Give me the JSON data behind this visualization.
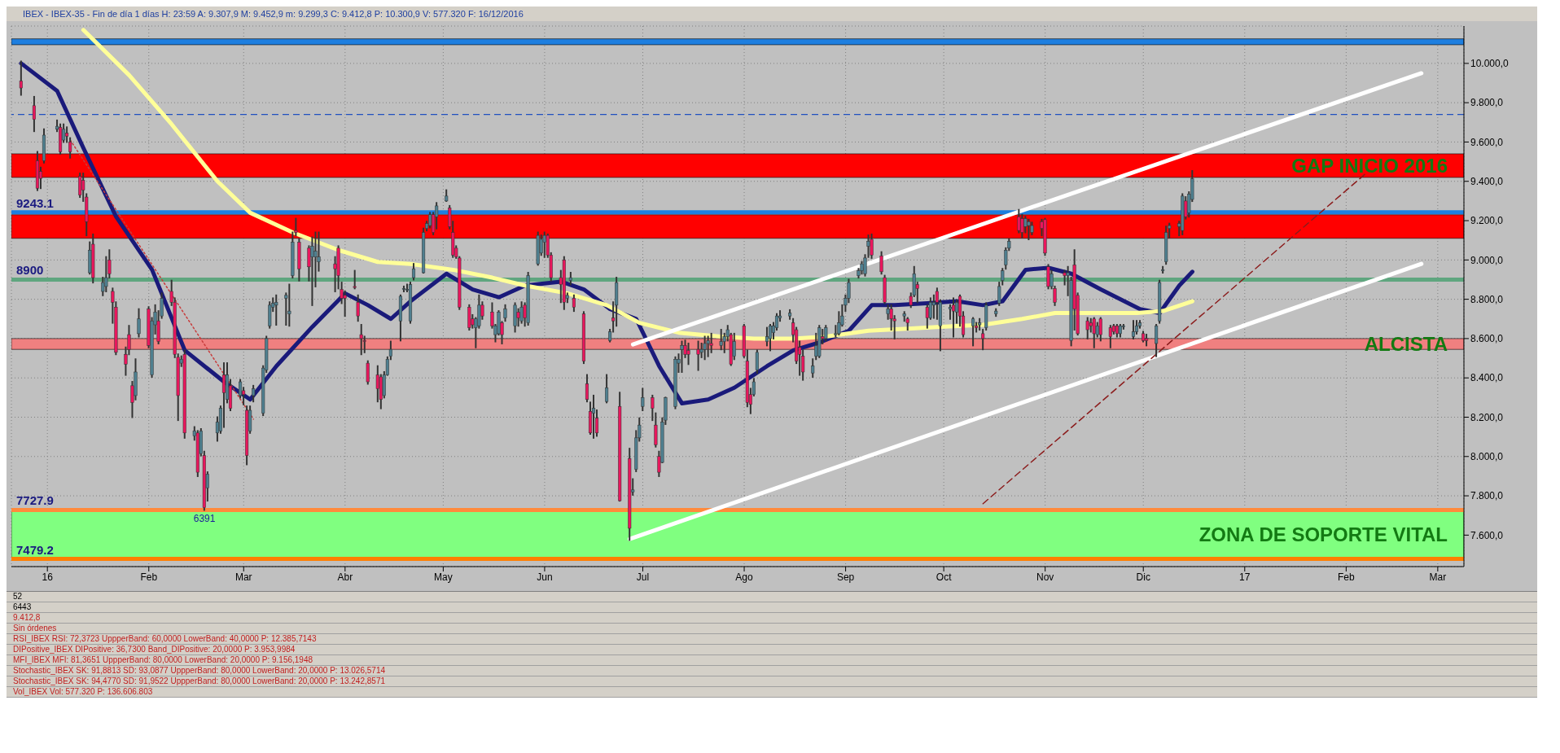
{
  "chart_data": {
    "type": "candlestick",
    "title": "IBEX - IBEX-35 - Fin de día 1 días  H: 23:59  A: 9.307,9  M: 9.452,9  m: 9.299,3  C: 9.412,8  P: 10.300,9  V: 577.320  F: 16/12/2016",
    "x": [
      "2015-12-24",
      "2015-12-28",
      "2015-12-29",
      "2015-12-30",
      "2015-12-31",
      "2016-01-04",
      "2016-01-05",
      "2016-01-06",
      "2016-01-07",
      "2016-01-08",
      "2016-01-11",
      "2016-01-12",
      "2016-01-13",
      "2016-01-14",
      "2016-01-15",
      "2016-01-18",
      "2016-01-19",
      "2016-01-20",
      "2016-01-21",
      "2016-01-22",
      "2016-01-25",
      "2016-01-26",
      "2016-01-27",
      "2016-01-28",
      "2016-01-29",
      "2016-02-01",
      "2016-02-02",
      "2016-02-03",
      "2016-02-04",
      "2016-02-05",
      "2016-02-08",
      "2016-02-09",
      "2016-02-10",
      "2016-02-11",
      "2016-02-12",
      "2016-02-15",
      "2016-02-16",
      "2016-02-17",
      "2016-02-18",
      "2016-02-19",
      "2016-02-22",
      "2016-02-23",
      "2016-02-24",
      "2016-02-25",
      "2016-02-26",
      "2016-02-29",
      "2016-03-01",
      "2016-03-02",
      "2016-03-03",
      "2016-03-04",
      "2016-03-07",
      "2016-03-08",
      "2016-03-09",
      "2016-03-10",
      "2016-03-11",
      "2016-03-14",
      "2016-03-15",
      "2016-03-16",
      "2016-03-17",
      "2016-03-18",
      "2016-03-21",
      "2016-03-22",
      "2016-03-23",
      "2016-03-24",
      "2016-03-29",
      "2016-03-30",
      "2016-03-31",
      "2016-04-01",
      "2016-04-04",
      "2016-04-05",
      "2016-04-06",
      "2016-04-07",
      "2016-04-08",
      "2016-04-11",
      "2016-04-12",
      "2016-04-13",
      "2016-04-14",
      "2016-04-15",
      "2016-04-18",
      "2016-04-19",
      "2016-04-20",
      "2016-04-21",
      "2016-04-22",
      "2016-04-25",
      "2016-04-26",
      "2016-04-27",
      "2016-04-28",
      "2016-04-29",
      "2016-05-02",
      "2016-05-03",
      "2016-05-04",
      "2016-05-05",
      "2016-05-06",
      "2016-05-09",
      "2016-05-10",
      "2016-05-11",
      "2016-05-12",
      "2016-05-13",
      "2016-05-16",
      "2016-05-17",
      "2016-05-18",
      "2016-05-19",
      "2016-05-20",
      "2016-05-23",
      "2016-05-24",
      "2016-05-25",
      "2016-05-26",
      "2016-05-27",
      "2016-05-30",
      "2016-05-31",
      "2016-06-01",
      "2016-06-02",
      "2016-06-03",
      "2016-06-06",
      "2016-06-07",
      "2016-06-08",
      "2016-06-09",
      "2016-06-10",
      "2016-06-13",
      "2016-06-14",
      "2016-06-15",
      "2016-06-16",
      "2016-06-17",
      "2016-06-20",
      "2016-06-21",
      "2016-06-22",
      "2016-06-23",
      "2016-06-24",
      "2016-06-27",
      "2016-06-28",
      "2016-06-29",
      "2016-06-30",
      "2016-07-01",
      "2016-07-04",
      "2016-07-05",
      "2016-07-06",
      "2016-07-07",
      "2016-07-08",
      "2016-07-11",
      "2016-07-12",
      "2016-07-13",
      "2016-07-14",
      "2016-07-15",
      "2016-07-18",
      "2016-07-19",
      "2016-07-20",
      "2016-07-21",
      "2016-07-22",
      "2016-07-25",
      "2016-07-26",
      "2016-07-27",
      "2016-07-28",
      "2016-07-29",
      "2016-08-01",
      "2016-08-02",
      "2016-08-03",
      "2016-08-04",
      "2016-08-05",
      "2016-08-08",
      "2016-08-09",
      "2016-08-10",
      "2016-08-11",
      "2016-08-12",
      "2016-08-15",
      "2016-08-16",
      "2016-08-17",
      "2016-08-18",
      "2016-08-19",
      "2016-08-22",
      "2016-08-23",
      "2016-08-24",
      "2016-08-25",
      "2016-08-26",
      "2016-08-29",
      "2016-08-30",
      "2016-08-31",
      "2016-09-01",
      "2016-09-02",
      "2016-09-05",
      "2016-09-06",
      "2016-09-07",
      "2016-09-08",
      "2016-09-09",
      "2016-09-12",
      "2016-09-13",
      "2016-09-14",
      "2016-09-15",
      "2016-09-16",
      "2016-09-19",
      "2016-09-20",
      "2016-09-21",
      "2016-09-22",
      "2016-09-23",
      "2016-09-26",
      "2016-09-27",
      "2016-09-28",
      "2016-09-29",
      "2016-09-30",
      "2016-10-03",
      "2016-10-04",
      "2016-10-05",
      "2016-10-06",
      "2016-10-07",
      "2016-10-10",
      "2016-10-11",
      "2016-10-12",
      "2016-10-13",
      "2016-10-14",
      "2016-10-17",
      "2016-10-18",
      "2016-10-19",
      "2016-10-20",
      "2016-10-21",
      "2016-10-24",
      "2016-10-25",
      "2016-10-26",
      "2016-10-27",
      "2016-10-28",
      "2016-10-31",
      "2016-11-01",
      "2016-11-02",
      "2016-11-03",
      "2016-11-04",
      "2016-11-07",
      "2016-11-08",
      "2016-11-09",
      "2016-11-10",
      "2016-11-11",
      "2016-11-14",
      "2016-11-15",
      "2016-11-16",
      "2016-11-17",
      "2016-11-18",
      "2016-11-21",
      "2016-11-22",
      "2016-11-23",
      "2016-11-24",
      "2016-11-25",
      "2016-11-28",
      "2016-11-29",
      "2016-11-30",
      "2016-12-01",
      "2016-12-02",
      "2016-12-05",
      "2016-12-06",
      "2016-12-07",
      "2016-12-08",
      "2016-12-09",
      "2016-12-12",
      "2016-12-13",
      "2016-12-14",
      "2016-12-15",
      "2016-12-16"
    ],
    "ohlc": [
      [
        9910,
        10010,
        9840,
        9875
      ],
      [
        9785,
        9830,
        9655,
        9715
      ],
      [
        9505,
        9550,
        9355,
        9365
      ],
      [
        9450,
        9470,
        9365,
        9415
      ],
      [
        9505,
        9665,
        9495,
        9635
      ],
      [
        9665,
        9710,
        9655,
        9680
      ],
      [
        9675,
        9690,
        9540,
        9550
      ],
      [
        9610,
        9690,
        9600,
        9665
      ],
      [
        9645,
        9675,
        9600,
        9630
      ],
      [
        9600,
        9620,
        9520,
        9550
      ],
      [
        9425,
        9440,
        9320,
        9330
      ],
      [
        9405,
        9440,
        9300,
        9355
      ],
      [
        9320,
        9335,
        9125,
        9195
      ],
      [
        8935,
        9090,
        8930,
        9050
      ],
      [
        9080,
        9130,
        8885,
        8910
      ],
      [
        8840,
        8910,
        8820,
        8885
      ],
      [
        8865,
        9015,
        8840,
        8910
      ],
      [
        9000,
        9050,
        8910,
        8930
      ],
      [
        8840,
        8855,
        8680,
        8785
      ],
      [
        8760,
        8785,
        8520,
        8530
      ],
      [
        8520,
        8555,
        8415,
        8470
      ],
      [
        8620,
        8665,
        8520,
        8545
      ],
      [
        8360,
        8380,
        8200,
        8275
      ],
      [
        8310,
        8495,
        8290,
        8430
      ],
      [
        8625,
        8750,
        8610,
        8700
      ],
      [
        8750,
        8760,
        8555,
        8565
      ],
      [
        8415,
        8705,
        8405,
        8690
      ],
      [
        8670,
        8770,
        8625,
        8735
      ],
      [
        8690,
        8740,
        8575,
        8585
      ],
      [
        8715,
        8830,
        8705,
        8805
      ],
      [
        8840,
        8895,
        8770,
        8785
      ],
      [
        8785,
        8805,
        8505,
        8520
      ],
      [
        8505,
        8520,
        8185,
        8310
      ],
      [
        8475,
        8510,
        8460,
        8495
      ],
      [
        8520,
        8540,
        8095,
        8120
      ],
      [
        8105,
        8150,
        8085,
        8130
      ],
      [
        8120,
        8130,
        7900,
        7920
      ],
      [
        8015,
        8140,
        8005,
        8130
      ],
      [
        8005,
        8025,
        7727.9,
        7740
      ],
      [
        7840,
        7920,
        7775,
        7910
      ],
      [
        8120,
        8200,
        8080,
        8175
      ],
      [
        8130,
        8255,
        8120,
        8245
      ],
      [
        8415,
        8475,
        8150,
        8325
      ],
      [
        8290,
        8475,
        8275,
        8415
      ],
      [
        8360,
        8390,
        8235,
        8245
      ],
      [
        8310,
        8390,
        8300,
        8380
      ],
      [
        8335,
        8350,
        8265,
        8315
      ],
      [
        8235,
        8255,
        7960,
        8005
      ],
      [
        8130,
        8255,
        8120,
        8235
      ],
      [
        8310,
        8360,
        8280,
        8345
      ],
      [
        8220,
        8460,
        8210,
        8450
      ],
      [
        8440,
        8610,
        8430,
        8600
      ],
      [
        8665,
        8785,
        8655,
        8770
      ],
      [
        8760,
        8805,
        8740,
        8780
      ],
      [
        8770,
        8820,
        8670,
        8785
      ],
      [
        8805,
        8830,
        8670,
        8820
      ],
      [
        8725,
        8875,
        8665,
        8740
      ],
      [
        8920,
        9140,
        8910,
        9090
      ],
      [
        9150,
        9210,
        9125,
        9140
      ],
      [
        9090,
        9105,
        8895,
        8955
      ],
      [
        9060,
        9070,
        8895,
        8965
      ],
      [
        9015,
        9115,
        8770,
        9070
      ],
      [
        9015,
        9140,
        8865,
        9045
      ],
      [
        8990,
        9140,
        8945,
        9015
      ],
      [
        8980,
        9015,
        8840,
        8955
      ],
      [
        9060,
        9070,
        8855,
        8920
      ],
      [
        8850,
        8885,
        8780,
        8805
      ],
      [
        8820,
        8840,
        8715,
        8805
      ],
      [
        8865,
        8945,
        8855,
        8860
      ],
      [
        8785,
        8820,
        8690,
        8715
      ],
      [
        8620,
        8670,
        8520,
        8600
      ],
      [
        8590,
        8610,
        8530,
        8585
      ],
      [
        8475,
        8485,
        8370,
        8380
      ],
      [
        8415,
        8460,
        8280,
        8345
      ],
      [
        8405,
        8415,
        8245,
        8290
      ],
      [
        8310,
        8430,
        8300,
        8415
      ],
      [
        8415,
        8505,
        8415,
        8495
      ],
      [
        8510,
        8585,
        8495,
        8545
      ],
      [
        8690,
        8820,
        8590,
        8815
      ],
      [
        8850,
        8865,
        8840,
        8855
      ],
      [
        8850,
        8875,
        8840,
        8850
      ],
      [
        8690,
        8885,
        8680,
        8875
      ],
      [
        8910,
        8980,
        8900,
        8955
      ],
      [
        8935,
        9160,
        8935,
        9140
      ],
      [
        9160,
        9195,
        9150,
        9185
      ],
      [
        9175,
        9240,
        9165,
        9230
      ],
      [
        9230,
        9240,
        9130,
        9140
      ],
      [
        9220,
        9290,
        9160,
        9275
      ],
      [
        9300,
        9355,
        9300,
        9325
      ],
      [
        9265,
        9275,
        9160,
        9170
      ],
      [
        9140,
        9195,
        9015,
        9025
      ],
      [
        9060,
        9070,
        9010,
        9015
      ],
      [
        9010,
        9015,
        8750,
        8760
      ],
      [
        8760,
        8770,
        8645,
        8655
      ],
      [
        8700,
        8720,
        8655,
        8670
      ],
      [
        8655,
        8705,
        8555,
        8700
      ],
      [
        8665,
        8820,
        8655,
        8770
      ],
      [
        8770,
        8785,
        8700,
        8715
      ],
      [
        8735,
        8780,
        8655,
        8665
      ],
      [
        8620,
        8670,
        8585,
        8665
      ],
      [
        8625,
        8740,
        8620,
        8735
      ],
      [
        8680,
        8685,
        8575,
        8620
      ],
      [
        8705,
        8770,
        8690,
        8750
      ],
      [
        8665,
        8780,
        8635,
        8770
      ],
      [
        8735,
        8750,
        8665,
        8705
      ],
      [
        8690,
        8785,
        8680,
        8760
      ],
      [
        8770,
        8780,
        8665,
        8705
      ],
      [
        8680,
        8935,
        8670,
        8920
      ],
      [
        8980,
        9140,
        8975,
        9125
      ],
      [
        9035,
        9125,
        9025,
        9105
      ],
      [
        9090,
        9140,
        9015,
        9125
      ],
      [
        9125,
        9130,
        9015,
        9025
      ],
      [
        9025,
        9035,
        8895,
        8910
      ],
      [
        8910,
        8945,
        8785,
        8875
      ],
      [
        9000,
        9015,
        8750,
        8785
      ],
      [
        8805,
        8830,
        8785,
        8820
      ],
      [
        8895,
        8935,
        8875,
        8910
      ],
      [
        8805,
        8820,
        8740,
        8760
      ],
      [
        8725,
        8735,
        8475,
        8485
      ],
      [
        8370,
        8415,
        8280,
        8290
      ],
      [
        8230,
        8275,
        8115,
        8120
      ],
      [
        8220,
        8310,
        8095,
        8245
      ],
      [
        8195,
        8235,
        8105,
        8120
      ],
      [
        8280,
        8415,
        8275,
        8350
      ],
      [
        8590,
        8645,
        8585,
        8635
      ],
      [
        8705,
        8785,
        8635,
        8690
      ],
      [
        8770,
        8910,
        8665,
        8885
      ],
      [
        8255,
        8325,
        7775,
        7775
      ],
      [
        7990,
        8040,
        7575,
        7635
      ],
      [
        7820,
        7885,
        7805,
        7830
      ],
      [
        7935,
        8130,
        7925,
        8095
      ],
      [
        8095,
        8195,
        8080,
        8160
      ],
      [
        8255,
        8345,
        8235,
        8300
      ],
      [
        8300,
        8310,
        8185,
        8245
      ],
      [
        8160,
        8220,
        8050,
        8060
      ],
      [
        8000,
        8025,
        7900,
        7920
      ],
      [
        7970,
        8195,
        7970,
        8175
      ],
      [
        8185,
        8300,
        8165,
        8300
      ],
      [
        8255,
        8505,
        8245,
        8495
      ],
      [
        8475,
        8520,
        8430,
        8495
      ],
      [
        8545,
        8585,
        8430,
        8565
      ],
      [
        8565,
        8590,
        8505,
        8520
      ],
      [
        8540,
        8575,
        8470,
        8520
      ],
      [
        8545,
        8585,
        8440,
        8520
      ],
      [
        8530,
        8575,
        8505,
        8545
      ],
      [
        8545,
        8610,
        8495,
        8575
      ],
      [
        8575,
        8610,
        8510,
        8590
      ],
      [
        8575,
        8625,
        8530,
        8565
      ],
      [
        8565,
        8645,
        8545,
        8585
      ],
      [
        8585,
        8625,
        8530,
        8610
      ],
      [
        8610,
        8665,
        8590,
        8645
      ],
      [
        8620,
        8625,
        8465,
        8470
      ],
      [
        8510,
        8625,
        8495,
        8585
      ],
      [
        8665,
        8670,
        8505,
        8510
      ],
      [
        8485,
        8540,
        8255,
        8275
      ],
      [
        8315,
        8345,
        8220,
        8265
      ],
      [
        8315,
        8395,
        8310,
        8380
      ],
      [
        8440,
        8540,
        8425,
        8530
      ],
      [
        8585,
        8655,
        8565,
        8610
      ],
      [
        8600,
        8670,
        8540,
        8665
      ],
      [
        8630,
        8680,
        8600,
        8665
      ],
      [
        8655,
        8725,
        8645,
        8715
      ],
      [
        8705,
        8740,
        8690,
        8715
      ],
      [
        8715,
        8745,
        8700,
        8730
      ],
      [
        8680,
        8700,
        8585,
        8620
      ],
      [
        8645,
        8655,
        8475,
        8485
      ],
      [
        8555,
        8585,
        8415,
        8520
      ],
      [
        8510,
        8540,
        8390,
        8430
      ],
      [
        8425,
        8495,
        8405,
        8460
      ],
      [
        8510,
        8625,
        8495,
        8565
      ],
      [
        8510,
        8665,
        8505,
        8655
      ],
      [
        8610,
        8645,
        8575,
        8600
      ],
      [
        8600,
        8665,
        8590,
        8655
      ],
      [
        8620,
        8665,
        8610,
        8625
      ],
      [
        8625,
        8735,
        8620,
        8680
      ],
      [
        8670,
        8770,
        8665,
        8715
      ],
      [
        8770,
        8820,
        8740,
        8805
      ],
      [
        8805,
        8900,
        8785,
        8885
      ],
      [
        8920,
        8955,
        8910,
        8945
      ],
      [
        8945,
        8990,
        8930,
        8980
      ],
      [
        8930,
        9025,
        8920,
        9010
      ],
      [
        9070,
        9125,
        9015,
        9095
      ],
      [
        9105,
        9130,
        9010,
        9025
      ],
      [
        9020,
        9040,
        8930,
        8940
      ],
      [
        8910,
        8920,
        8780,
        8785
      ],
      [
        8725,
        8770,
        8700,
        8750
      ],
      [
        8750,
        8770,
        8645,
        8700
      ],
      [
        8700,
        8715,
        8600,
        8690
      ],
      [
        8715,
        8735,
        8690,
        8725
      ],
      [
        8700,
        8705,
        8645,
        8680
      ],
      [
        8815,
        8830,
        8760,
        8770
      ],
      [
        8820,
        8965,
        8815,
        8930
      ],
      [
        8875,
        8885,
        8785,
        8855
      ],
      [
        8760,
        8770,
        8655,
        8705
      ],
      [
        8705,
        8805,
        8700,
        8785
      ],
      [
        8770,
        8820,
        8705,
        8785
      ],
      [
        8840,
        8855,
        8700,
        8785
      ],
      [
        8665,
        8795,
        8540,
        8785
      ],
      [
        8750,
        8770,
        8700,
        8760
      ],
      [
        8770,
        8805,
        8610,
        8740
      ],
      [
        8735,
        8795,
        8680,
        8785
      ],
      [
        8815,
        8820,
        8665,
        8715
      ],
      [
        8715,
        8735,
        8610,
        8620
      ],
      [
        8665,
        8705,
        8565,
        8700
      ],
      [
        8665,
        8680,
        8635,
        8655
      ],
      [
        8670,
        8700,
        8645,
        8680
      ],
      [
        8625,
        8645,
        8545,
        8600
      ],
      [
        8655,
        8780,
        8645,
        8770
      ],
      [
        8725,
        8750,
        8715,
        8740
      ],
      [
        8780,
        8885,
        8770,
        8865
      ],
      [
        8895,
        8955,
        8875,
        8945
      ],
      [
        8975,
        9060,
        8955,
        9050
      ],
      [
        9060,
        9105,
        9050,
        9095
      ],
      [
        9220,
        9255,
        9140,
        9150
      ],
      [
        9210,
        9230,
        9115,
        9140
      ],
      [
        9170,
        9220,
        9140,
        9210
      ],
      [
        9175,
        9205,
        9105,
        9195
      ],
      [
        9140,
        9190,
        9130,
        9175
      ],
      [
        9195,
        9205,
        9125,
        9160
      ],
      [
        9205,
        9210,
        9025,
        9035
      ],
      [
        8965,
        8975,
        8855,
        8865
      ],
      [
        8865,
        8945,
        8855,
        8930
      ],
      [
        8855,
        8865,
        8770,
        8785
      ],
      [
        8935,
        8945,
        8875,
        8920
      ],
      [
        8920,
        8965,
        8820,
        8935
      ],
      [
        8590,
        8910,
        8565,
        8895
      ],
      [
        8975,
        9050,
        8645,
        8750
      ],
      [
        8820,
        8830,
        8620,
        8625
      ],
      [
        8690,
        8705,
        8600,
        8645
      ],
      [
        8680,
        8700,
        8635,
        8665
      ],
      [
        8700,
        8705,
        8555,
        8625
      ],
      [
        8620,
        8680,
        8610,
        8665
      ],
      [
        8700,
        8705,
        8590,
        8620
      ],
      [
        8655,
        8665,
        8555,
        8610
      ],
      [
        8665,
        8670,
        8625,
        8635
      ],
      [
        8665,
        8670,
        8610,
        8625
      ],
      [
        8625,
        8670,
        8610,
        8665
      ],
      [
        8660,
        8670,
        8650,
        8665
      ],
      [
        8610,
        8690,
        8600,
        8635
      ],
      [
        8635,
        8690,
        8625,
        8665
      ],
      [
        8665,
        8690,
        8655,
        8680
      ],
      [
        8625,
        8635,
        8585,
        8590
      ],
      [
        8600,
        8620,
        8565,
        8590
      ],
      [
        8575,
        8670,
        8510,
        8665
      ],
      [
        8690,
        8895,
        8680,
        8885
      ],
      [
        8945,
        8965,
        8935,
        8950
      ],
      [
        8990,
        9170,
        8980,
        9140
      ],
      [
        9160,
        9185,
        9115,
        9175
      ],
      [
        9170,
        9195,
        9125,
        9185
      ],
      [
        9150,
        9335,
        9130,
        9325
      ],
      [
        9300,
        9320,
        9210,
        9220
      ],
      [
        9240,
        9345,
        9220,
        9335
      ],
      [
        9307.9,
        9452.9,
        9299.3,
        9412.8
      ]
    ],
    "series": [
      {
        "type": "line",
        "color": "#1a1a7a",
        "x": [
          "2015-12-24",
          "2016-01-04",
          "2016-01-12",
          "2016-01-22",
          "2016-02-02",
          "2016-02-12",
          "2016-02-24",
          "2016-03-03",
          "2016-03-11",
          "2016-03-22",
          "2016-04-01",
          "2016-04-08",
          "2016-04-15",
          "2016-04-21",
          "2016-05-02",
          "2016-05-10",
          "2016-05-18",
          "2016-05-26",
          "2016-06-06",
          "2016-06-13",
          "2016-06-21",
          "2016-06-29",
          "2016-07-06",
          "2016-07-13",
          "2016-07-21",
          "2016-07-29",
          "2016-08-08",
          "2016-08-16",
          "2016-08-24",
          "2016-09-02",
          "2016-09-09",
          "2016-09-16",
          "2016-09-26",
          "2016-10-05",
          "2016-10-13",
          "2016-10-19",
          "2016-10-26",
          "2016-11-02",
          "2016-11-09",
          "2016-11-18",
          "2016-11-30",
          "2016-12-06",
          "2016-12-12",
          "2016-12-16"
        ],
        "values": [
          10000,
          9860,
          9570,
          9220,
          8950,
          8540,
          8380,
          8290,
          8460,
          8660,
          8830,
          8770,
          8700,
          8790,
          8930,
          8850,
          8810,
          8870,
          8890,
          8850,
          8750,
          8700,
          8460,
          8270,
          8290,
          8350,
          8460,
          8540,
          8580,
          8640,
          8770,
          8770,
          8780,
          8790,
          8770,
          8790,
          8950,
          8960,
          8930,
          8850,
          8750,
          8730,
          8870,
          8940
        ]
      },
      {
        "type": "line",
        "color": "#ffff99",
        "x": [
          "2016-01-12",
          "2016-01-26",
          "2016-02-08",
          "2016-02-22",
          "2016-03-03",
          "2016-03-16",
          "2016-03-30",
          "2016-04-11",
          "2016-04-21",
          "2016-05-04",
          "2016-05-16",
          "2016-05-26",
          "2016-06-08",
          "2016-06-20",
          "2016-06-30",
          "2016-07-12",
          "2016-07-25",
          "2016-08-04",
          "2016-08-16",
          "2016-08-26",
          "2016-09-08",
          "2016-09-20",
          "2016-09-30",
          "2016-10-13",
          "2016-10-25",
          "2016-11-04",
          "2016-11-16",
          "2016-11-29",
          "2016-12-07",
          "2016-12-16"
        ],
        "values": [
          10170,
          9940,
          9690,
          9400,
          9240,
          9140,
          9050,
          8990,
          8980,
          8950,
          8910,
          8870,
          8830,
          8770,
          8680,
          8630,
          8610,
          8600,
          8600,
          8610,
          8640,
          8650,
          8660,
          8670,
          8700,
          8730,
          8730,
          8730,
          8740,
          8790
        ]
      },
      {
        "type": "line",
        "color": "#ffffff",
        "x": [
          "2016-06-28",
          "2017-02-24"
        ],
        "values": [
          8570,
          9950
        ]
      },
      {
        "type": "line",
        "color": "#ffffff",
        "x": [
          "2016-06-27",
          "2017-02-24"
        ],
        "values": [
          7580,
          8980
        ]
      },
      {
        "type": "line",
        "color": "#c83c3c",
        "line_style": "dotted",
        "x": [
          "2016-01-08",
          "2016-03-04"
        ],
        "values": [
          9610,
          8190
        ]
      },
      {
        "type": "line",
        "color": "#8b1c1c",
        "line_style": "dashed",
        "x": [
          "2016-10-13",
          "2017-02-07"
        ],
        "values": [
          7760,
          9440
        ]
      }
    ],
    "xlim": [
      "2015-12-21",
      "2017-03-09"
    ],
    "xticks": [
      {
        "value": "2016-01-01",
        "label": "16"
      },
      {
        "value": "2016-02-01",
        "label": "Feb"
      },
      {
        "value": "2016-03-01",
        "label": "Mar"
      },
      {
        "value": "2016-04-01",
        "label": "Abr"
      },
      {
        "value": "2016-05-01",
        "label": "May"
      },
      {
        "value": "2016-06-01",
        "label": "Jun"
      },
      {
        "value": "2016-07-01",
        "label": "Jul"
      },
      {
        "value": "2016-08-01",
        "label": "Ago"
      },
      {
        "value": "2016-09-01",
        "label": "Sep"
      },
      {
        "value": "2016-10-01",
        "label": "Oct"
      },
      {
        "value": "2016-11-01",
        "label": "Nov"
      },
      {
        "value": "2016-12-01",
        "label": "Dic"
      },
      {
        "value": "2017-01-01",
        "label": "17"
      },
      {
        "value": "2017-02-01",
        "label": "Feb"
      },
      {
        "value": "2017-03-01",
        "label": "Mar"
      }
    ],
    "ylim": [
      7440,
      10190
    ],
    "yticks": [
      {
        "value": 7600,
        "label": "7.600,0"
      },
      {
        "value": 7800,
        "label": "7.800,0"
      },
      {
        "value": 8000,
        "label": "8.000,0"
      },
      {
        "value": 8200,
        "label": "8.200,0"
      },
      {
        "value": 8400,
        "label": "8.400,0"
      },
      {
        "value": 8600,
        "label": "8.600,0"
      },
      {
        "value": 8800,
        "label": "8.800,0"
      },
      {
        "value": 9000,
        "label": "9.000,0"
      },
      {
        "value": 9200,
        "label": "9.200,0"
      },
      {
        "value": 9400,
        "label": "9.400,0"
      },
      {
        "value": 9600,
        "label": "9.600,0"
      },
      {
        "value": 9800,
        "label": "9.800,0"
      },
      {
        "value": 10000,
        "label": "10.000,0"
      }
    ],
    "grid": true,
    "ref_lines": [
      {
        "axis": "y",
        "value": 9243.1,
        "label": "9243.1",
        "color": "#1e7fe0"
      },
      {
        "axis": "y",
        "value": 7727.9,
        "label": "7727.9",
        "color": "#ff8a3c"
      },
      {
        "axis": "y",
        "value": 7479.2,
        "label": "7479.2",
        "color": "#ff7f00"
      },
      {
        "axis": "y",
        "value": 8900,
        "label": "8900",
        "color": "#5fa67f"
      },
      {
        "axis": "y",
        "value": 9740,
        "color": "#2050c0",
        "line_style": "dashed"
      }
    ],
    "bands": [
      {
        "axis": "y",
        "from": 9110,
        "to": 9230,
        "color": "#ff0000"
      },
      {
        "axis": "y",
        "from": 9420,
        "to": 9540,
        "color": "#ff0000",
        "label": "GAP INICIO 2016"
      },
      {
        "axis": "y",
        "from": 8545,
        "to": 8600,
        "color": "#f08080",
        "label": "ALCISTA"
      },
      {
        "axis": "y",
        "from": 7480,
        "to": 7730,
        "color": "#80ff80",
        "label": "ZONA DE SOPORTE VITAL"
      },
      {
        "axis": "y",
        "from": 10095,
        "to": 10125,
        "color": "#1e7fe0"
      }
    ],
    "annotations": [
      {
        "text": "6391",
        "x": "2016-02-18",
        "y": 7727.9
      },
      "52",
      "6443",
      "9.412,8",
      "Sin órdenes",
      "RSI_IBEX RSI: 72,3723  UppperBand: 60,0000  LowerBand: 40,0000  P: 12.385,7143",
      "DIPositive_IBEX DIPositive: 36,7300  Band_DIPositive: 20,0000  P: 3.953,9984",
      "MFI_IBEX MFI: 81,3651  UppperBand: 80,0000  LowerBand: 20,0000  P: 9.156,1948",
      "Stochastic_IBEX SK: 91,8813  SD: 93,0877  UppperBand: 80,0000  LowerBand: 20,0000  P: 13.026,5714",
      "Stochastic_IBEX SK: 94,4770  SD: 91,9522  UppperBand: 80,0000  LowerBand: 20,0000  P: 13.242,8571",
      "Vol_IBEX Vol: 577.320  P: 136.606.803"
    ]
  }
}
